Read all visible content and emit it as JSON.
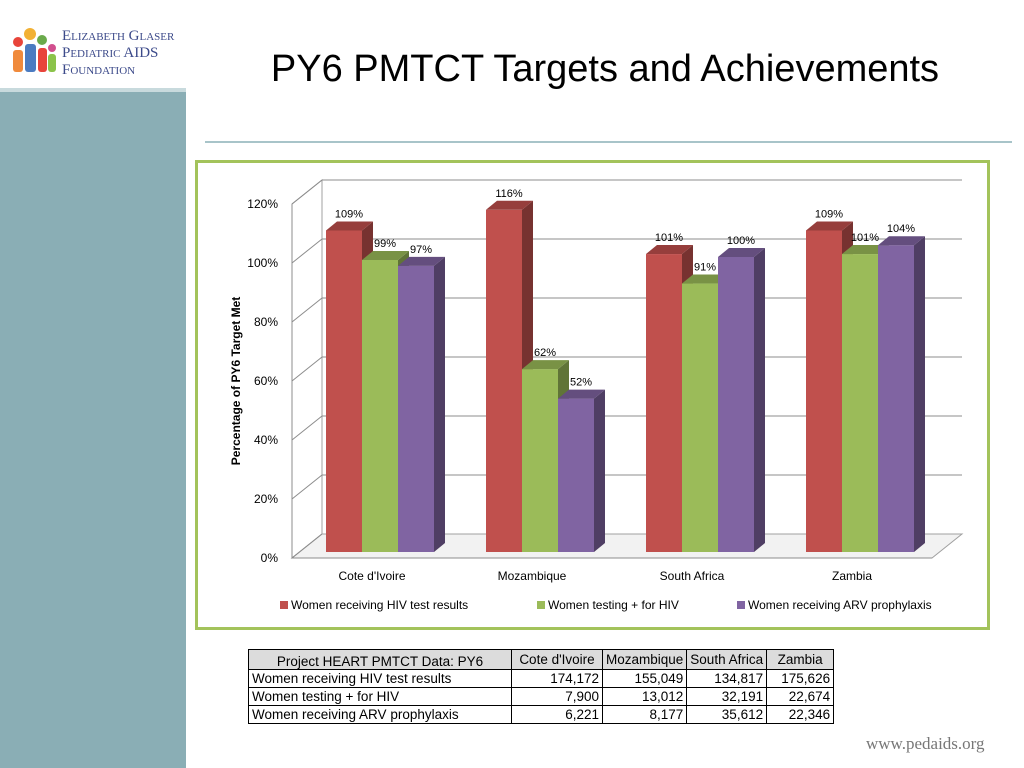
{
  "logo": {
    "line1": "Elizabeth Glaser",
    "line2": "Pediatric AIDS",
    "line3": "Foundation"
  },
  "slide_title": "PY6 PMTCT Targets and Achievements",
  "chart_data": {
    "type": "bar",
    "categories": [
      "Cote d'Ivoire",
      "Mozambique",
      "South Africa",
      "Zambia"
    ],
    "series": [
      {
        "name": "Women receiving HIV test results",
        "values": [
          109,
          116,
          101,
          109
        ],
        "labels": [
          "109%",
          "116%",
          "101%",
          "109%"
        ],
        "color": "#c0504d"
      },
      {
        "name": "Women testing + for HIV",
        "values": [
          99,
          62,
          91,
          101
        ],
        "labels": [
          "99%",
          "62%",
          "91%",
          "101%"
        ],
        "color": "#9bbb59"
      },
      {
        "name": "Women receiving ARV prophylaxis",
        "values": [
          97,
          52,
          100,
          104
        ],
        "labels": [
          "97%",
          "52%",
          "100%",
          "104%"
        ],
        "color": "#8064a2"
      }
    ],
    "ylabel": "Percentage of PY6 Target Met",
    "xlabel": "",
    "ylim": [
      0,
      120
    ],
    "yticks": [
      "0%",
      "20%",
      "40%",
      "60%",
      "80%",
      "100%",
      "120%"
    ],
    "grid": true,
    "legend": "bottom"
  },
  "table": {
    "header": "Project HEART PMTCT Data: PY6",
    "columns": [
      "Cote d'Ivoire",
      "Mozambique",
      "South Africa",
      "Zambia"
    ],
    "rows": [
      {
        "label": "Women receiving HIV test results",
        "values": [
          "174,172",
          "155,049",
          "134,817",
          "175,626"
        ]
      },
      {
        "label": "Women testing + for HIV",
        "values": [
          "7,900",
          "13,012",
          "32,191",
          "22,674"
        ]
      },
      {
        "label": "Women receiving ARV prophylaxis",
        "values": [
          "6,221",
          "8,177",
          "35,612",
          "22,346"
        ]
      }
    ]
  },
  "footer_url": "www.pedaids.org"
}
